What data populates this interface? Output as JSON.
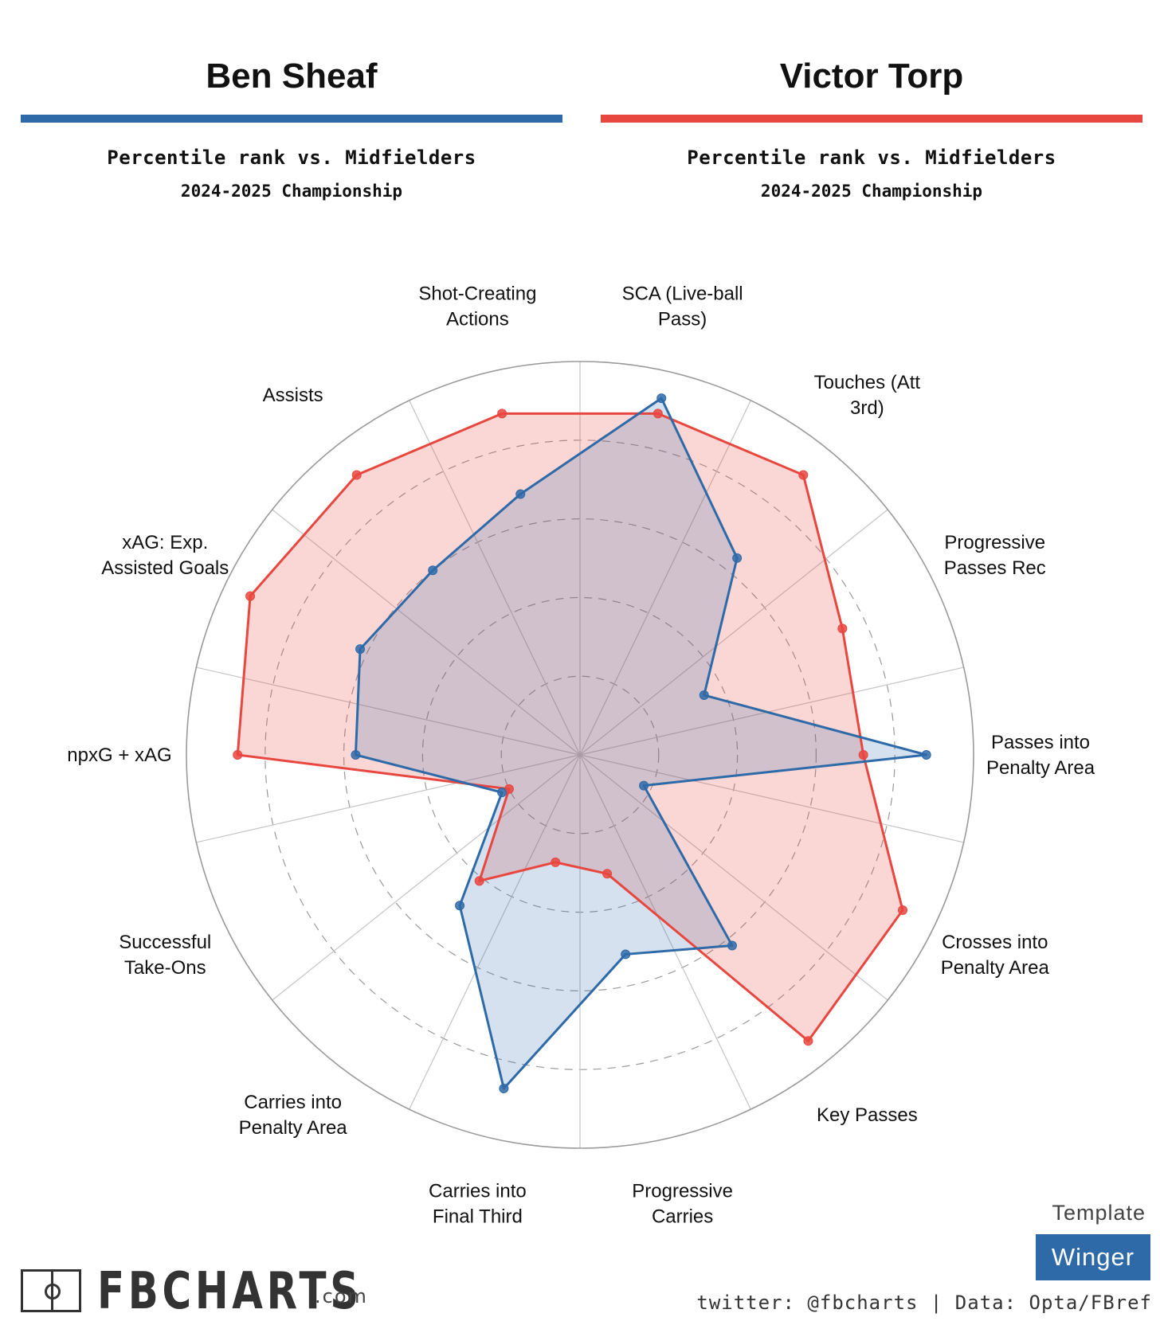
{
  "players": [
    {
      "name": "Ben Sheaf",
      "color": "#2f6aa8",
      "subtitle": "Percentile rank vs. Midfielders",
      "season": "2024-2025 Championship"
    },
    {
      "name": "Victor Torp",
      "color": "#e8473f",
      "subtitle": "Percentile rank vs. Midfielders",
      "season": "2024-2025 Championship"
    }
  ],
  "chart_data": {
    "type": "radar",
    "axes": [
      "SCA (Live-ball Pass)",
      "Touches (Att 3rd)",
      "Progressive Passes Rec",
      "Passes into Penalty Area",
      "Crosses into Penalty Area",
      "Key Passes",
      "Progressive Carries",
      "Carries into Final Third",
      "Carries into Penalty Area",
      "Successful Take-Ons",
      "npxG + xAG",
      "xAG: Exp. Assisted Goals",
      "Assists",
      "Shot-Creating Actions"
    ],
    "axis_labels": [
      [
        "SCA (Live-ball",
        "Pass)"
      ],
      [
        "Touches (Att",
        "3rd)"
      ],
      [
        "Progressive",
        "Passes Rec"
      ],
      [
        "Passes into",
        "Penalty Area"
      ],
      [
        "Crosses into",
        "Penalty Area"
      ],
      [
        "Key Passes"
      ],
      [
        "Progressive",
        "Carries"
      ],
      [
        "Carries into",
        "Final Third"
      ],
      [
        "Carries into",
        "Penalty Area"
      ],
      [
        "Successful",
        "Take-Ons"
      ],
      [
        "npxG + xAG"
      ],
      [
        "xAG: Exp.",
        "Assisted Goals"
      ],
      [
        "Assists"
      ],
      [
        "Shot-Creating",
        "Actions"
      ]
    ],
    "ylim": [
      0,
      100
    ],
    "series": [
      {
        "name": "Ben Sheaf",
        "color": "#2f6aa8",
        "fill": "rgba(47,106,168,0.20)",
        "values": [
          93,
          64,
          35,
          88,
          18,
          62,
          52,
          87,
          49,
          22,
          57,
          62,
          60,
          68
        ]
      },
      {
        "name": "Victor Torp",
        "color": "#e8473f",
        "fill": "rgba(232,71,63,0.22)",
        "values": [
          89,
          91,
          74,
          72,
          91,
          93,
          31,
          28,
          41,
          20,
          87,
          93,
          91,
          89
        ]
      }
    ]
  },
  "template": {
    "label": "Template",
    "value": "Winger"
  },
  "brand": {
    "name": "FBCHARTS",
    "suffix": ".com"
  },
  "footer": "twitter: @fbcharts | Data: Opta/FBref"
}
